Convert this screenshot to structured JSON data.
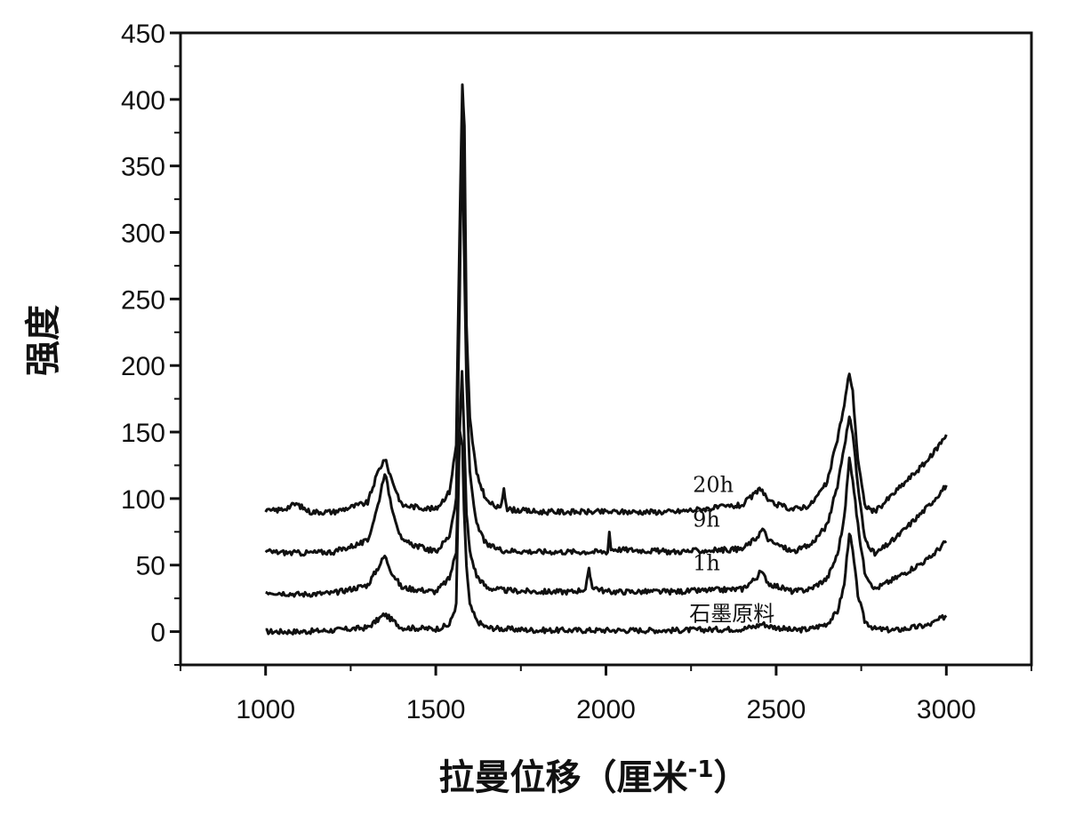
{
  "chart_data": {
    "type": "line",
    "xlabel": "拉曼位移（厘米",
    "xlabel_sup": "-1",
    "xlabel_close": "）",
    "ylabel": "强度",
    "xlim": [
      750,
      3250
    ],
    "ylim": [
      -25,
      450
    ],
    "x_ticks": [
      1000,
      1500,
      2000,
      2500,
      3000
    ],
    "x_tick_labels": [
      "1000",
      "1500",
      "2000",
      "2500",
      "3000"
    ],
    "y_ticks": [
      0,
      50,
      100,
      150,
      200,
      250,
      300,
      350,
      400,
      450
    ],
    "y_tick_labels": [
      "0",
      "50",
      "100",
      "150",
      "200",
      "250",
      "300",
      "350",
      "400",
      "450"
    ],
    "grid": false,
    "legend": "none",
    "series": [
      {
        "name": "石墨原料",
        "x": [
          1000,
          1100,
          1200,
          1300,
          1330,
          1350,
          1370,
          1400,
          1500,
          1540,
          1560,
          1570,
          1578,
          1583,
          1590,
          1600,
          1620,
          1650,
          1700,
          1800,
          2000,
          2200,
          2400,
          2440,
          2460,
          2480,
          2550,
          2600,
          2650,
          2680,
          2700,
          2715,
          2725,
          2740,
          2760,
          2790,
          2850,
          2950,
          3000
        ],
        "y": [
          0,
          0,
          1,
          3,
          9,
          13,
          9,
          3,
          2,
          5,
          20,
          150,
          140,
          90,
          50,
          20,
          8,
          3,
          2,
          1,
          1,
          1,
          2,
          4,
          6,
          4,
          1,
          2,
          6,
          15,
          35,
          75,
          60,
          28,
          8,
          2,
          1,
          5,
          12
        ]
      },
      {
        "name": "1h",
        "x": [
          1000,
          1100,
          1200,
          1300,
          1330,
          1350,
          1370,
          1400,
          1500,
          1540,
          1560,
          1570,
          1577,
          1583,
          1590,
          1600,
          1620,
          1650,
          1700,
          1800,
          1900,
          1940,
          1950,
          1960,
          2000,
          2200,
          2400,
          2440,
          2455,
          2480,
          2550,
          2600,
          2650,
          2680,
          2700,
          2715,
          2725,
          2740,
          2760,
          2790,
          2850,
          2950,
          3000
        ],
        "y": [
          30,
          28,
          29,
          35,
          48,
          57,
          45,
          33,
          30,
          40,
          60,
          150,
          195,
          150,
          90,
          60,
          42,
          33,
          31,
          30,
          30,
          32,
          46,
          34,
          30,
          30,
          32,
          40,
          45,
          36,
          30,
          32,
          40,
          58,
          85,
          130,
          115,
          80,
          45,
          32,
          40,
          55,
          68
        ]
      },
      {
        "name": "9h",
        "x": [
          1000,
          1100,
          1200,
          1300,
          1330,
          1350,
          1370,
          1400,
          1500,
          1540,
          1560,
          1570,
          1577,
          1583,
          1590,
          1600,
          1620,
          1650,
          1700,
          1800,
          1900,
          2005,
          2010,
          2015,
          2200,
          2400,
          2440,
          2460,
          2480,
          2550,
          2600,
          2650,
          2680,
          2700,
          2715,
          2725,
          2740,
          2760,
          2790,
          2850,
          2950,
          3000
        ],
        "y": [
          60,
          59,
          60,
          68,
          95,
          120,
          95,
          68,
          60,
          72,
          100,
          250,
          380,
          290,
          190,
          120,
          80,
          65,
          61,
          60,
          60,
          60,
          75,
          62,
          60,
          62,
          70,
          77,
          68,
          60,
          65,
          80,
          110,
          140,
          160,
          150,
          110,
          70,
          58,
          70,
          95,
          110
        ]
      },
      {
        "name": "20h",
        "x": [
          1000,
          1050,
          1090,
          1130,
          1200,
          1300,
          1330,
          1350,
          1370,
          1400,
          1500,
          1540,
          1560,
          1570,
          1578,
          1584,
          1590,
          1600,
          1620,
          1650,
          1690,
          1700,
          1710,
          1800,
          2000,
          2200,
          2400,
          2440,
          2455,
          2480,
          2550,
          2600,
          2650,
          2680,
          2700,
          2715,
          2725,
          2740,
          2760,
          2790,
          2850,
          2950,
          3000
        ],
        "y": [
          90,
          92,
          96,
          90,
          90,
          97,
          120,
          130,
          115,
          95,
          92,
          105,
          140,
          300,
          410,
          380,
          230,
          160,
          118,
          98,
          92,
          108,
          92,
          90,
          90,
          90,
          95,
          104,
          108,
          97,
          92,
          95,
          112,
          145,
          170,
          195,
          180,
          130,
          95,
          90,
          105,
          130,
          148
        ]
      }
    ],
    "annotations": [
      "20h",
      "9h",
      "1h",
      "石墨原料"
    ]
  }
}
